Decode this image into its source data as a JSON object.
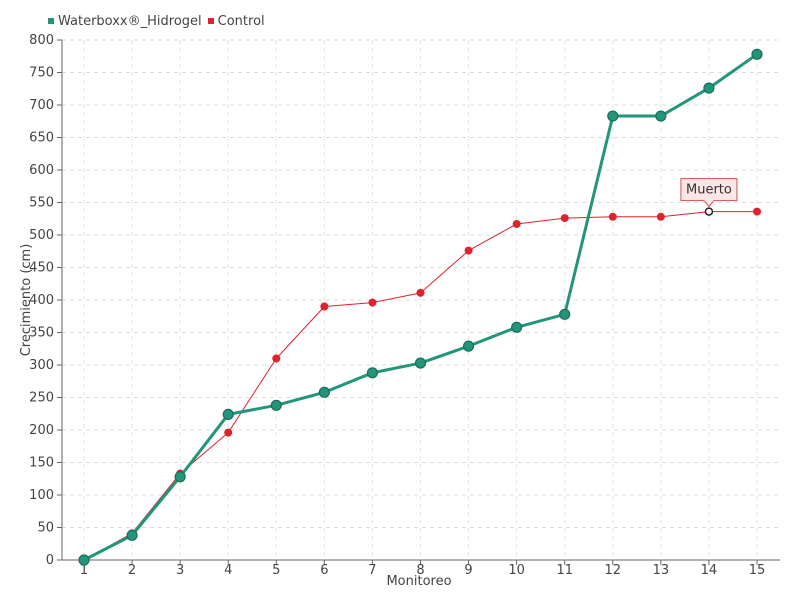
{
  "chart_data": {
    "type": "line",
    "title": "",
    "xlabel": "Monitoreo",
    "ylabel": "Crecimiento (cm)",
    "categories": [
      "1",
      "2",
      "3",
      "4",
      "5",
      "6",
      "7",
      "8",
      "9",
      "10",
      "11",
      "12",
      "13",
      "14",
      "15"
    ],
    "ylim": [
      0,
      800
    ],
    "yticks": [
      0,
      50,
      100,
      150,
      200,
      250,
      300,
      350,
      400,
      450,
      500,
      550,
      600,
      650,
      700,
      750,
      800
    ],
    "grid": true,
    "legend_position": "top-left",
    "series": [
      {
        "name": "Waterboxx®_Hidrogel",
        "color": "#22967a",
        "values": [
          0,
          38,
          128,
          224,
          238,
          258,
          288,
          303,
          329,
          358,
          378,
          683,
          683,
          726,
          778
        ]
      },
      {
        "name": "Control",
        "color": "#e2202e",
        "values": [
          0,
          41,
          133,
          196,
          310,
          390,
          396,
          411,
          476,
          517,
          526,
          528,
          528,
          536,
          536
        ]
      }
    ],
    "annotations": [
      {
        "text": "Muerto",
        "series": "Control",
        "category": "14",
        "value": 536
      }
    ]
  }
}
